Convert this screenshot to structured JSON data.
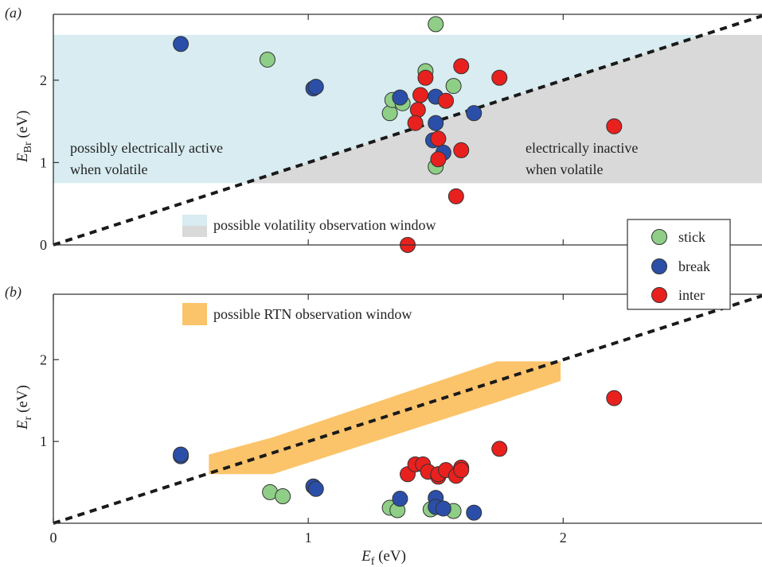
{
  "panels": {
    "a": {
      "tag": "(a)",
      "ylabel_main": "E",
      "ylabel_sub": "Br",
      "ylabel_unit": " (eV)",
      "annotation_left_line1": "possibly electrically active",
      "annotation_left_line2": "when volatile",
      "annotation_right_line1": "electrically inactive",
      "annotation_right_line2": "when volatile",
      "window_legend_label": "possible volatility observation window"
    },
    "b": {
      "tag": "(b)",
      "ylabel_main": "E",
      "ylabel_sub": "r",
      "ylabel_unit": " (eV)",
      "window_legend_label": "possible RTN observation window"
    },
    "xlabel_main": "E",
    "xlabel_sub": "f",
    "xlabel_unit": " (eV)"
  },
  "legend": {
    "placement": "right, between panels",
    "items": [
      {
        "label": "stick",
        "color": "#8fce87"
      },
      {
        "label": "break",
        "color": "#2b4fa8"
      },
      {
        "label": "inter",
        "color": "#e8211e"
      }
    ]
  },
  "colors": {
    "volatility_window": "#d8ecf1",
    "inactive_window": "#d9d9d9",
    "rtn_window": "#fbc46a",
    "diagonal": "#1a1a1a",
    "stick": "#8fce87",
    "break": "#2b4fa8",
    "inter": "#e8211e"
  },
  "chart_data": [
    {
      "type": "scatter",
      "panel": "a",
      "ylabel": "E_Br (eV)",
      "xlim": [
        0,
        2.78
      ],
      "ylim": [
        0,
        2.8
      ],
      "xticks": [
        "0",
        "1",
        "2"
      ],
      "yticks": [
        "0",
        "1",
        "2"
      ],
      "grid": false,
      "reference_line": {
        "style": "dashed",
        "slope": 1
      },
      "regions": {
        "volatility_window": {
          "ymin": 0.75,
          "ymax": 2.55
        },
        "inactive_region": "below diagonal within window"
      },
      "series": [
        {
          "name": "stick",
          "points": [
            [
              0.84,
              2.25
            ],
            [
              1.5,
              2.68
            ],
            [
              1.46,
              2.11
            ],
            [
              1.32,
              1.6
            ],
            [
              1.33,
              1.76
            ],
            [
              1.37,
              1.72
            ],
            [
              1.57,
              1.93
            ],
            [
              1.5,
              0.95
            ]
          ]
        },
        {
          "name": "break",
          "points": [
            [
              0.5,
              2.44
            ],
            [
              1.02,
              1.9
            ],
            [
              1.03,
              1.92
            ],
            [
              1.36,
              1.79
            ],
            [
              1.5,
              1.8
            ],
            [
              1.5,
              1.48
            ],
            [
              1.49,
              1.27
            ],
            [
              1.53,
              1.12
            ],
            [
              1.65,
              1.6
            ]
          ]
        },
        {
          "name": "inter",
          "points": [
            [
              1.6,
              2.17
            ],
            [
              1.46,
              2.03
            ],
            [
              1.75,
              2.03
            ],
            [
              1.44,
              1.82
            ],
            [
              1.54,
              1.75
            ],
            [
              1.43,
              1.64
            ],
            [
              1.42,
              1.48
            ],
            [
              1.51,
              1.29
            ],
            [
              1.6,
              1.15
            ],
            [
              1.51,
              1.04
            ],
            [
              1.58,
              0.59
            ],
            [
              2.2,
              1.44
            ],
            [
              1.39,
              0.0
            ]
          ]
        }
      ]
    },
    {
      "type": "scatter",
      "panel": "b",
      "xlabel": "E_f (eV)",
      "ylabel": "E_r (eV)",
      "xlim": [
        0,
        2.78
      ],
      "ylim": [
        0,
        2.8
      ],
      "xticks": [
        "0",
        "1",
        "2"
      ],
      "yticks": [
        "1",
        "2"
      ],
      "grid": false,
      "reference_line": {
        "style": "dashed",
        "slope": 1
      },
      "rtn_window_polygon": [
        [
          0.61,
          0.84
        ],
        [
          0.86,
          1.05
        ],
        [
          1.74,
          1.98
        ],
        [
          1.99,
          1.98
        ],
        [
          1.99,
          1.74
        ],
        [
          1.74,
          1.48
        ],
        [
          0.86,
          0.6
        ],
        [
          0.61,
          0.6
        ]
      ],
      "series": [
        {
          "name": "stick",
          "points": [
            [
              0.85,
              0.38
            ],
            [
              0.9,
              0.33
            ],
            [
              1.32,
              0.19
            ],
            [
              1.35,
              0.16
            ],
            [
              1.48,
              0.17
            ],
            [
              1.51,
              0.2
            ],
            [
              1.57,
              0.15
            ]
          ]
        },
        {
          "name": "break",
          "points": [
            [
              0.5,
              0.82
            ],
            [
              0.5,
              0.84
            ],
            [
              1.02,
              0.45
            ],
            [
              1.03,
              0.42
            ],
            [
              1.36,
              0.3
            ],
            [
              1.5,
              0.31
            ],
            [
              1.5,
              0.2
            ],
            [
              1.53,
              0.18
            ],
            [
              1.65,
              0.13
            ]
          ]
        },
        {
          "name": "inter",
          "points": [
            [
              1.39,
              0.6
            ],
            [
              1.42,
              0.72
            ],
            [
              1.45,
              0.72
            ],
            [
              1.47,
              0.63
            ],
            [
              1.51,
              0.57
            ],
            [
              1.51,
              0.6
            ],
            [
              1.54,
              0.65
            ],
            [
              1.58,
              0.58
            ],
            [
              1.6,
              0.68
            ],
            [
              1.6,
              0.65
            ],
            [
              1.75,
              0.91
            ],
            [
              2.2,
              1.53
            ]
          ]
        }
      ]
    }
  ]
}
